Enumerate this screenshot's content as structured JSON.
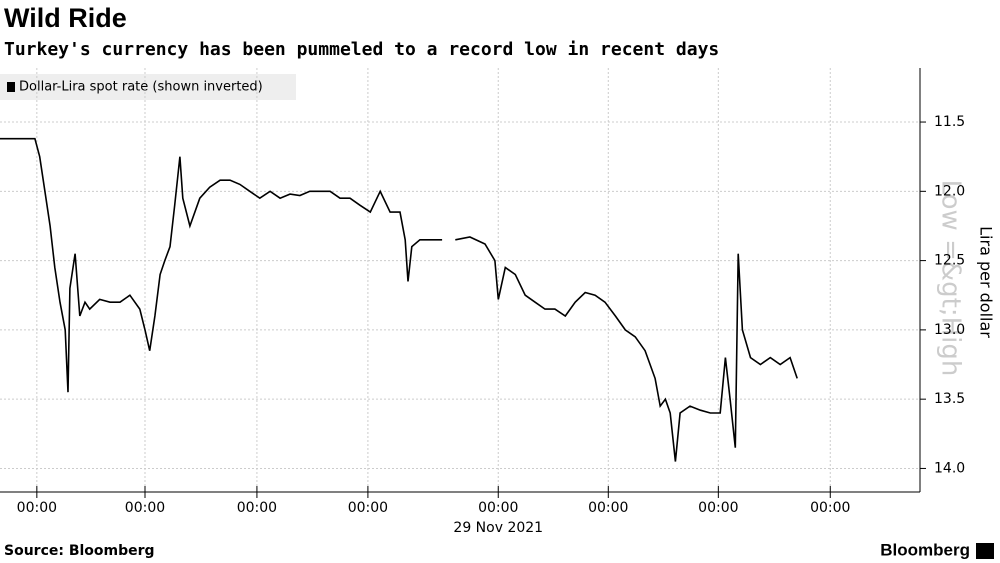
{
  "chart_data": {
    "type": "line",
    "title": "Wild Ride",
    "subtitle": "Turkey's currency has been pummeled to a record low in recent days",
    "y_axis_label": "Lira per dollar",
    "y_axis_annotation": "Low =&gt;High",
    "date_annotation": "29 Nov 2021",
    "source": "Source: Bloomberg",
    "brand": "Bloomberg",
    "inverted": true,
    "grid": true,
    "x": [
      -7.8,
      -0.4,
      0.6,
      1.7,
      2.8,
      3.8,
      4.9,
      6.0,
      6.6,
      7.0,
      8.1,
      9.1,
      10.2,
      11.2,
      13.3,
      15.5,
      17.6,
      19.7,
      21.8,
      22.9,
      23.9,
      25.0,
      26.1,
      27.1,
      28.2,
      29.2,
      30.3,
      30.9,
      32.4,
      34.5,
      36.6,
      38.8,
      40.9,
      43.0,
      45.1,
      47.2,
      49.4,
      51.5,
      53.6,
      55.7,
      57.8,
      60.0,
      62.1,
      64.2,
      66.3,
      68.4,
      70.6,
      72.7,
      74.8,
      76.9,
      78.0,
      78.6,
      79.4,
      81.1,
      83.3,
      85.8,
      87.0,
      88.6,
      91.7,
      94.9,
      97.0,
      97.7,
      99.2,
      101.3,
      103.4,
      105.5,
      107.6,
      109.7,
      111.9,
      114.0,
      116.1,
      118.2,
      120.3,
      122.5,
      124.6,
      126.7,
      128.8,
      130.9,
      132.0,
      133.1,
      134.1,
      135.2,
      136.2,
      138.3,
      140.5,
      142.6,
      144.7,
      145.8,
      146.8,
      147.9,
      148.5,
      149.4,
      151.1,
      153.2,
      155.3,
      157.4,
      159.5,
      161.0
    ],
    "series": [
      {
        "name": "Dollar-Lira spot rate (shown inverted)",
        "color": "#000000",
        "values": [
          11.62,
          11.62,
          11.75,
          12.0,
          12.25,
          12.55,
          12.8,
          13.0,
          13.45,
          12.7,
          12.45,
          12.9,
          12.8,
          12.85,
          12.78,
          12.8,
          12.8,
          12.75,
          12.85,
          13.0,
          13.15,
          12.9,
          12.6,
          12.5,
          12.4,
          12.1,
          11.75,
          12.05,
          12.25,
          12.05,
          11.97,
          11.92,
          11.92,
          11.95,
          12.0,
          12.05,
          12.0,
          12.05,
          12.02,
          12.03,
          12.0,
          12.0,
          12.0,
          12.05,
          12.05,
          12.1,
          12.15,
          12.0,
          12.15,
          12.15,
          12.35,
          12.65,
          12.4,
          12.35,
          12.35,
          12.35,
          null,
          12.35,
          12.33,
          12.38,
          12.5,
          12.78,
          12.55,
          12.6,
          12.75,
          12.8,
          12.85,
          12.85,
          12.9,
          12.8,
          12.73,
          12.75,
          12.8,
          12.9,
          13.0,
          13.05,
          13.15,
          13.35,
          13.55,
          13.5,
          13.6,
          13.95,
          13.6,
          13.55,
          13.58,
          13.6,
          13.6,
          13.2,
          13.5,
          13.85,
          12.45,
          13.0,
          13.2,
          13.25,
          13.2,
          13.25,
          13.2,
          13.35
        ]
      }
    ],
    "xlim": [
      -7.8,
      187
    ],
    "xticks": [
      {
        "value": 0,
        "label": "00:00"
      },
      {
        "value": 22.9,
        "label": "00:00"
      },
      {
        "value": 46.6,
        "label": "00:00"
      },
      {
        "value": 70.1,
        "label": "00:00"
      },
      {
        "value": 97.7,
        "label": "00:00"
      },
      {
        "value": 121.0,
        "label": "00:00"
      },
      {
        "value": 144.3,
        "label": "00:00"
      },
      {
        "value": 168,
        "label": "00:00"
      }
    ],
    "ylim": [
      11.11,
      14.17
    ],
    "yticks": [
      11.5,
      {
        "value": 12,
        "label": "12.0"
      },
      12.5,
      {
        "value": 13,
        "label": "13.0"
      },
      13.5,
      {
        "value": 14,
        "label": "14.0"
      }
    ]
  }
}
